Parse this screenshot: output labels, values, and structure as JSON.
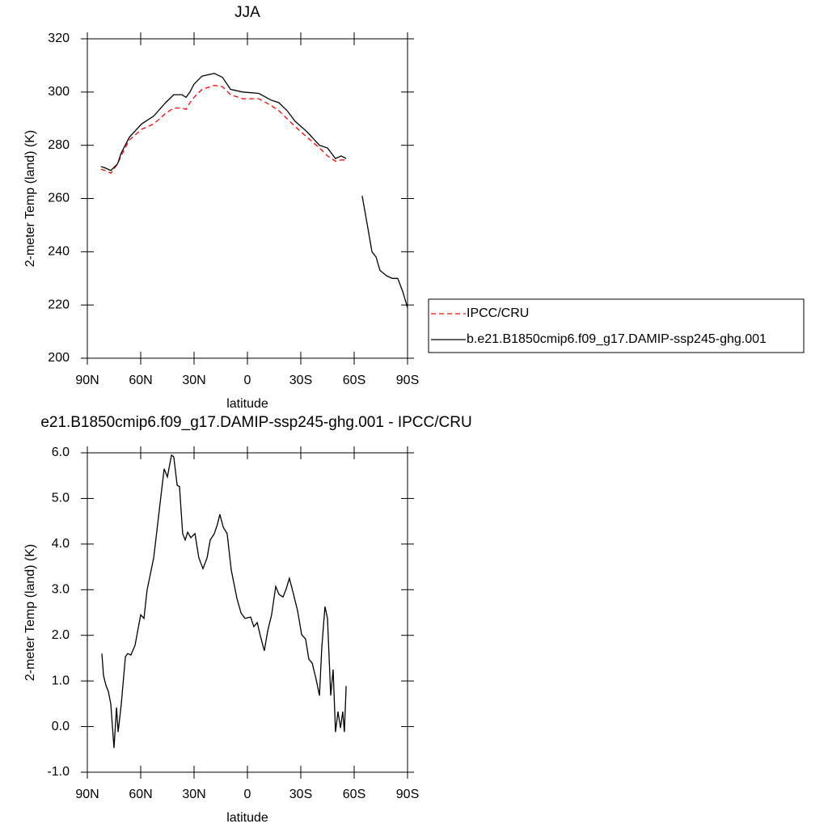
{
  "chart_data": [
    {
      "type": "line",
      "title": "JJA",
      "x_label": "latitude",
      "y_label": "2-meter Temp (land) (K)",
      "x": [
        82.3,
        80,
        76.8,
        73,
        71,
        66.4,
        59.5,
        52.7,
        46,
        41.4,
        36.8,
        34.5,
        32.3,
        30,
        25.5,
        18.6,
        14,
        9.5,
        2.7,
        -6.4,
        -13.2,
        -17.7,
        -22.3,
        -26.8,
        -33.6,
        -40.5,
        -45,
        -49.5,
        -52.7,
        -55.5,
        -60,
        -64.5,
        -67.7,
        -70,
        -72.3,
        -74.5,
        -78.2,
        -81.4,
        -84.5,
        -87.3,
        -90
      ],
      "series": [
        {
          "name": "IPCC/CRU",
          "color": "#ff0000",
          "dashed": true,
          "values": [
            271,
            270.5,
            269.5,
            273,
            276,
            282,
            286,
            288,
            292,
            294,
            294,
            293.5,
            296,
            298,
            301,
            302.5,
            302,
            299,
            297.5,
            297.5,
            295,
            293,
            290,
            287,
            283,
            279,
            276,
            274,
            274.5,
            274.5,
            null,
            null,
            null,
            null,
            null,
            null,
            null,
            null,
            null,
            null,
            null
          ]
        },
        {
          "name": "b.e21.B1850cmip6.f09_g17.DAMIP-ssp245-ghg.001",
          "color": "#000000",
          "dashed": false,
          "values": [
            272,
            271.5,
            270.5,
            273,
            277,
            283,
            288,
            291,
            296,
            299,
            299,
            298,
            300,
            303,
            306,
            307,
            305.5,
            301,
            300,
            299.5,
            297,
            296,
            293,
            289,
            285,
            280,
            279,
            275,
            276,
            275,
            null,
            261,
            249,
            240,
            238,
            233,
            231,
            230,
            230,
            225,
            219
          ]
        }
      ],
      "xlim": [
        90,
        -90
      ],
      "xticks": [
        {
          "value": 90,
          "label": "90N"
        },
        {
          "value": 60,
          "label": "60N"
        },
        {
          "value": 30,
          "label": "30N"
        },
        0,
        {
          "value": -30,
          "label": "30S"
        },
        {
          "value": -60,
          "label": "60S"
        },
        {
          "value": -90,
          "label": "90S"
        }
      ],
      "ylim": [
        200,
        320
      ],
      "yticks": [
        200,
        220,
        240,
        260,
        280,
        300,
        320
      ],
      "legend": "right"
    },
    {
      "type": "line",
      "title": "e21.B1850cmip6.f09_g17.DAMIP-ssp245-ghg.001 - IPCC/CRU",
      "x_label": "latitude",
      "y_label": "2-meter Temp (land) (K)",
      "x": [
        81.8,
        80.9,
        79.5,
        78.2,
        76.8,
        75,
        73.6,
        72.7,
        70.9,
        68.6,
        67.3,
        65.5,
        63.2,
        60,
        58.2,
        56.4,
        52.7,
        49.5,
        46.8,
        45,
        42.7,
        41.4,
        39.5,
        38.2,
        36.4,
        35,
        33.6,
        31.8,
        29.5,
        27.3,
        25,
        22.7,
        20.9,
        18.6,
        16.8,
        15.5,
        13.6,
        11.4,
        9.1,
        5.9,
        3.6,
        1.4,
        -1.8,
        -3.6,
        -5.5,
        -7.3,
        -9.5,
        -11.4,
        -13.6,
        -15.9,
        -17.7,
        -20,
        -21.8,
        -23.6,
        -25.9,
        -28.2,
        -30.5,
        -32.7,
        -34.5,
        -36.4,
        -38.6,
        -40.5,
        -41.8,
        -43.6,
        -45,
        -46.8,
        -48.2,
        -49.5,
        -50.9,
        -52.3,
        -53.6,
        -54.5,
        -55.5
      ],
      "values": [
        1.6,
        1.12,
        0.9,
        0.77,
        0.5,
        -0.47,
        0.42,
        -0.12,
        0.5,
        1.53,
        1.6,
        1.57,
        1.78,
        2.45,
        2.37,
        2.99,
        3.7,
        4.76,
        5.65,
        5.47,
        5.95,
        5.91,
        5.29,
        5.26,
        4.23,
        4.09,
        4.26,
        4.14,
        4.23,
        3.7,
        3.46,
        3.7,
        4.09,
        4.23,
        4.44,
        4.65,
        4.37,
        4.23,
        3.43,
        2.81,
        2.49,
        2.37,
        2.4,
        2.19,
        2.28,
        1.98,
        1.66,
        2.1,
        2.45,
        3.07,
        2.9,
        2.84,
        3.02,
        3.25,
        2.9,
        2.54,
        2.01,
        1.92,
        1.48,
        1.39,
        1.04,
        0.68,
        1.74,
        2.63,
        2.37,
        0.68,
        1.25,
        -0.12,
        0.33,
        -0.03,
        0.33,
        -0.12,
        0.89
      ],
      "color": "#000000",
      "xlim": [
        90,
        -90
      ],
      "xticks": [
        {
          "value": 90,
          "label": "90N"
        },
        {
          "value": 60,
          "label": "60N"
        },
        {
          "value": 30,
          "label": "30N"
        },
        0,
        {
          "value": -30,
          "label": "30S"
        },
        {
          "value": -60,
          "label": "60S"
        },
        {
          "value": -90,
          "label": "90S"
        }
      ],
      "ylim": [
        -1,
        6
      ],
      "yticks": [
        {
          "value": -1,
          "label": "-1.0"
        },
        {
          "value": 0,
          "label": "0.0"
        },
        {
          "value": 1,
          "label": "1.0"
        },
        {
          "value": 2,
          "label": "2.0"
        },
        {
          "value": 3,
          "label": "3.0"
        },
        {
          "value": 4,
          "label": "4.0"
        },
        {
          "value": 5,
          "label": "5.0"
        },
        {
          "value": 6,
          "label": "6.0"
        }
      ]
    }
  ]
}
